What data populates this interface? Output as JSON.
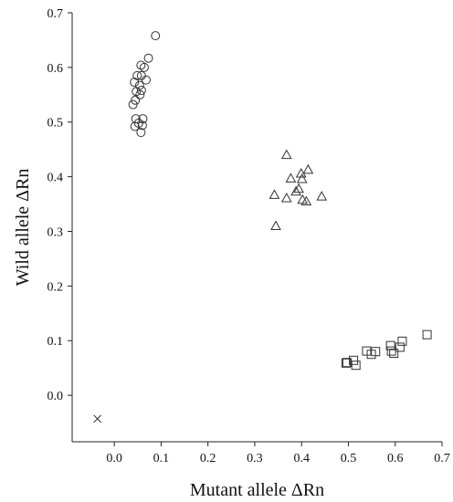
{
  "chart_data": {
    "type": "scatter",
    "title": "",
    "xlabel": "Mutant allele ΔRn",
    "ylabel": "Wild allele ΔRn",
    "xlim": [
      -0.09,
      0.7
    ],
    "ylim": [
      -0.085,
      0.7
    ],
    "xticks": [
      "0.0",
      "0.1",
      "0.2",
      "0.3",
      "0.4",
      "0.5",
      "0.6",
      "0.7"
    ],
    "yticks": [
      "0.0",
      "0.1",
      "0.2",
      "0.3",
      "0.4",
      "0.5",
      "0.6",
      "0.7"
    ],
    "xtick_values": [
      0.0,
      0.1,
      0.2,
      0.3,
      0.4,
      0.5,
      0.6,
      0.7
    ],
    "ytick_values": [
      0.0,
      0.1,
      0.2,
      0.3,
      0.4,
      0.5,
      0.6,
      0.7
    ],
    "grid": false,
    "series": [
      {
        "marker": "circle",
        "points": [
          [
            0.088,
            0.658
          ],
          [
            0.073,
            0.617
          ],
          [
            0.057,
            0.604
          ],
          [
            0.064,
            0.6
          ],
          [
            0.049,
            0.585
          ],
          [
            0.058,
            0.585
          ],
          [
            0.068,
            0.577
          ],
          [
            0.043,
            0.573
          ],
          [
            0.054,
            0.567
          ],
          [
            0.058,
            0.558
          ],
          [
            0.047,
            0.556
          ],
          [
            0.055,
            0.55
          ],
          [
            0.045,
            0.54
          ],
          [
            0.04,
            0.532
          ],
          [
            0.046,
            0.506
          ],
          [
            0.061,
            0.506
          ],
          [
            0.052,
            0.498
          ],
          [
            0.044,
            0.492
          ],
          [
            0.06,
            0.494
          ],
          [
            0.057,
            0.481
          ]
        ]
      },
      {
        "marker": "triangle",
        "points": [
          [
            0.368,
            0.44
          ],
          [
            0.414,
            0.413
          ],
          [
            0.399,
            0.406
          ],
          [
            0.377,
            0.397
          ],
          [
            0.401,
            0.396
          ],
          [
            0.388,
            0.373
          ],
          [
            0.394,
            0.378
          ],
          [
            0.342,
            0.367
          ],
          [
            0.368,
            0.361
          ],
          [
            0.443,
            0.364
          ],
          [
            0.402,
            0.358
          ],
          [
            0.41,
            0.355
          ],
          [
            0.345,
            0.31
          ]
        ]
      },
      {
        "marker": "square",
        "points": [
          [
            0.668,
            0.111
          ],
          [
            0.615,
            0.099
          ],
          [
            0.59,
            0.091
          ],
          [
            0.61,
            0.088
          ],
          [
            0.592,
            0.081
          ],
          [
            0.539,
            0.081
          ],
          [
            0.558,
            0.08
          ],
          [
            0.597,
            0.077
          ],
          [
            0.549,
            0.075
          ],
          [
            0.511,
            0.064
          ],
          [
            0.497,
            0.06
          ],
          [
            0.495,
            0.059
          ],
          [
            0.516,
            0.055
          ]
        ]
      },
      {
        "marker": "cross",
        "points": [
          [
            -0.036,
            -0.043
          ]
        ]
      }
    ]
  }
}
